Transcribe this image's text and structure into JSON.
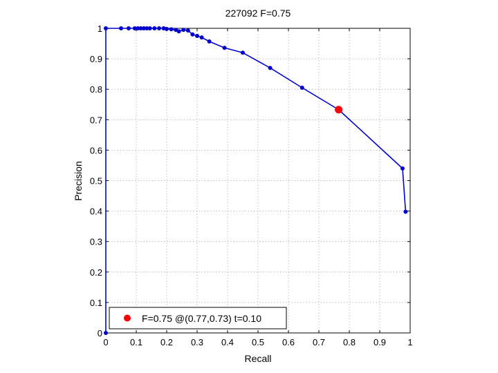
{
  "chart_data": {
    "type": "line",
    "title": "227092 F=0.75",
    "xlabel": "Recall",
    "ylabel": "Precision",
    "xlim": [
      0,
      1
    ],
    "ylim": [
      0,
      1
    ],
    "grid": true,
    "xticks": [
      "0",
      "0.1",
      "0.2",
      "0.3",
      "0.4",
      "0.5",
      "0.6",
      "0.7",
      "0.8",
      "0.9",
      "1"
    ],
    "yticks": [
      "0",
      "0.1",
      "0.2",
      "0.3",
      "0.4",
      "0.5",
      "0.6",
      "0.7",
      "0.8",
      "0.9",
      "1"
    ],
    "series": [
      {
        "color": "#0000cc",
        "points": [
          [
            0.0,
            0.0
          ],
          [
            0.0,
            1.0
          ],
          [
            0.05,
            1.0
          ],
          [
            0.075,
            1.0
          ],
          [
            0.095,
            1.0
          ],
          [
            0.105,
            1.0
          ],
          [
            0.115,
            1.0
          ],
          [
            0.125,
            1.0
          ],
          [
            0.135,
            1.0
          ],
          [
            0.145,
            1.0
          ],
          [
            0.16,
            1.0
          ],
          [
            0.175,
            1.0
          ],
          [
            0.19,
            1.0
          ],
          [
            0.2,
            0.998
          ],
          [
            0.215,
            0.997
          ],
          [
            0.23,
            0.995
          ],
          [
            0.24,
            0.99
          ],
          [
            0.255,
            0.995
          ],
          [
            0.27,
            0.993
          ],
          [
            0.285,
            0.98
          ],
          [
            0.3,
            0.975
          ],
          [
            0.315,
            0.97
          ],
          [
            0.34,
            0.957
          ],
          [
            0.39,
            0.936
          ],
          [
            0.45,
            0.92
          ],
          [
            0.54,
            0.87
          ],
          [
            0.645,
            0.805
          ],
          [
            0.765,
            0.733
          ],
          [
            0.975,
            0.54
          ],
          [
            0.985,
            0.398
          ]
        ]
      }
    ],
    "highlight": {
      "x": 0.77,
      "y": 0.73,
      "plot_x": 0.765,
      "plot_y": 0.733,
      "color": "#ff0000"
    },
    "legend": {
      "label": "F=0.75 @(0.77,0.73) t=0.10",
      "position": "bottom-left"
    }
  }
}
